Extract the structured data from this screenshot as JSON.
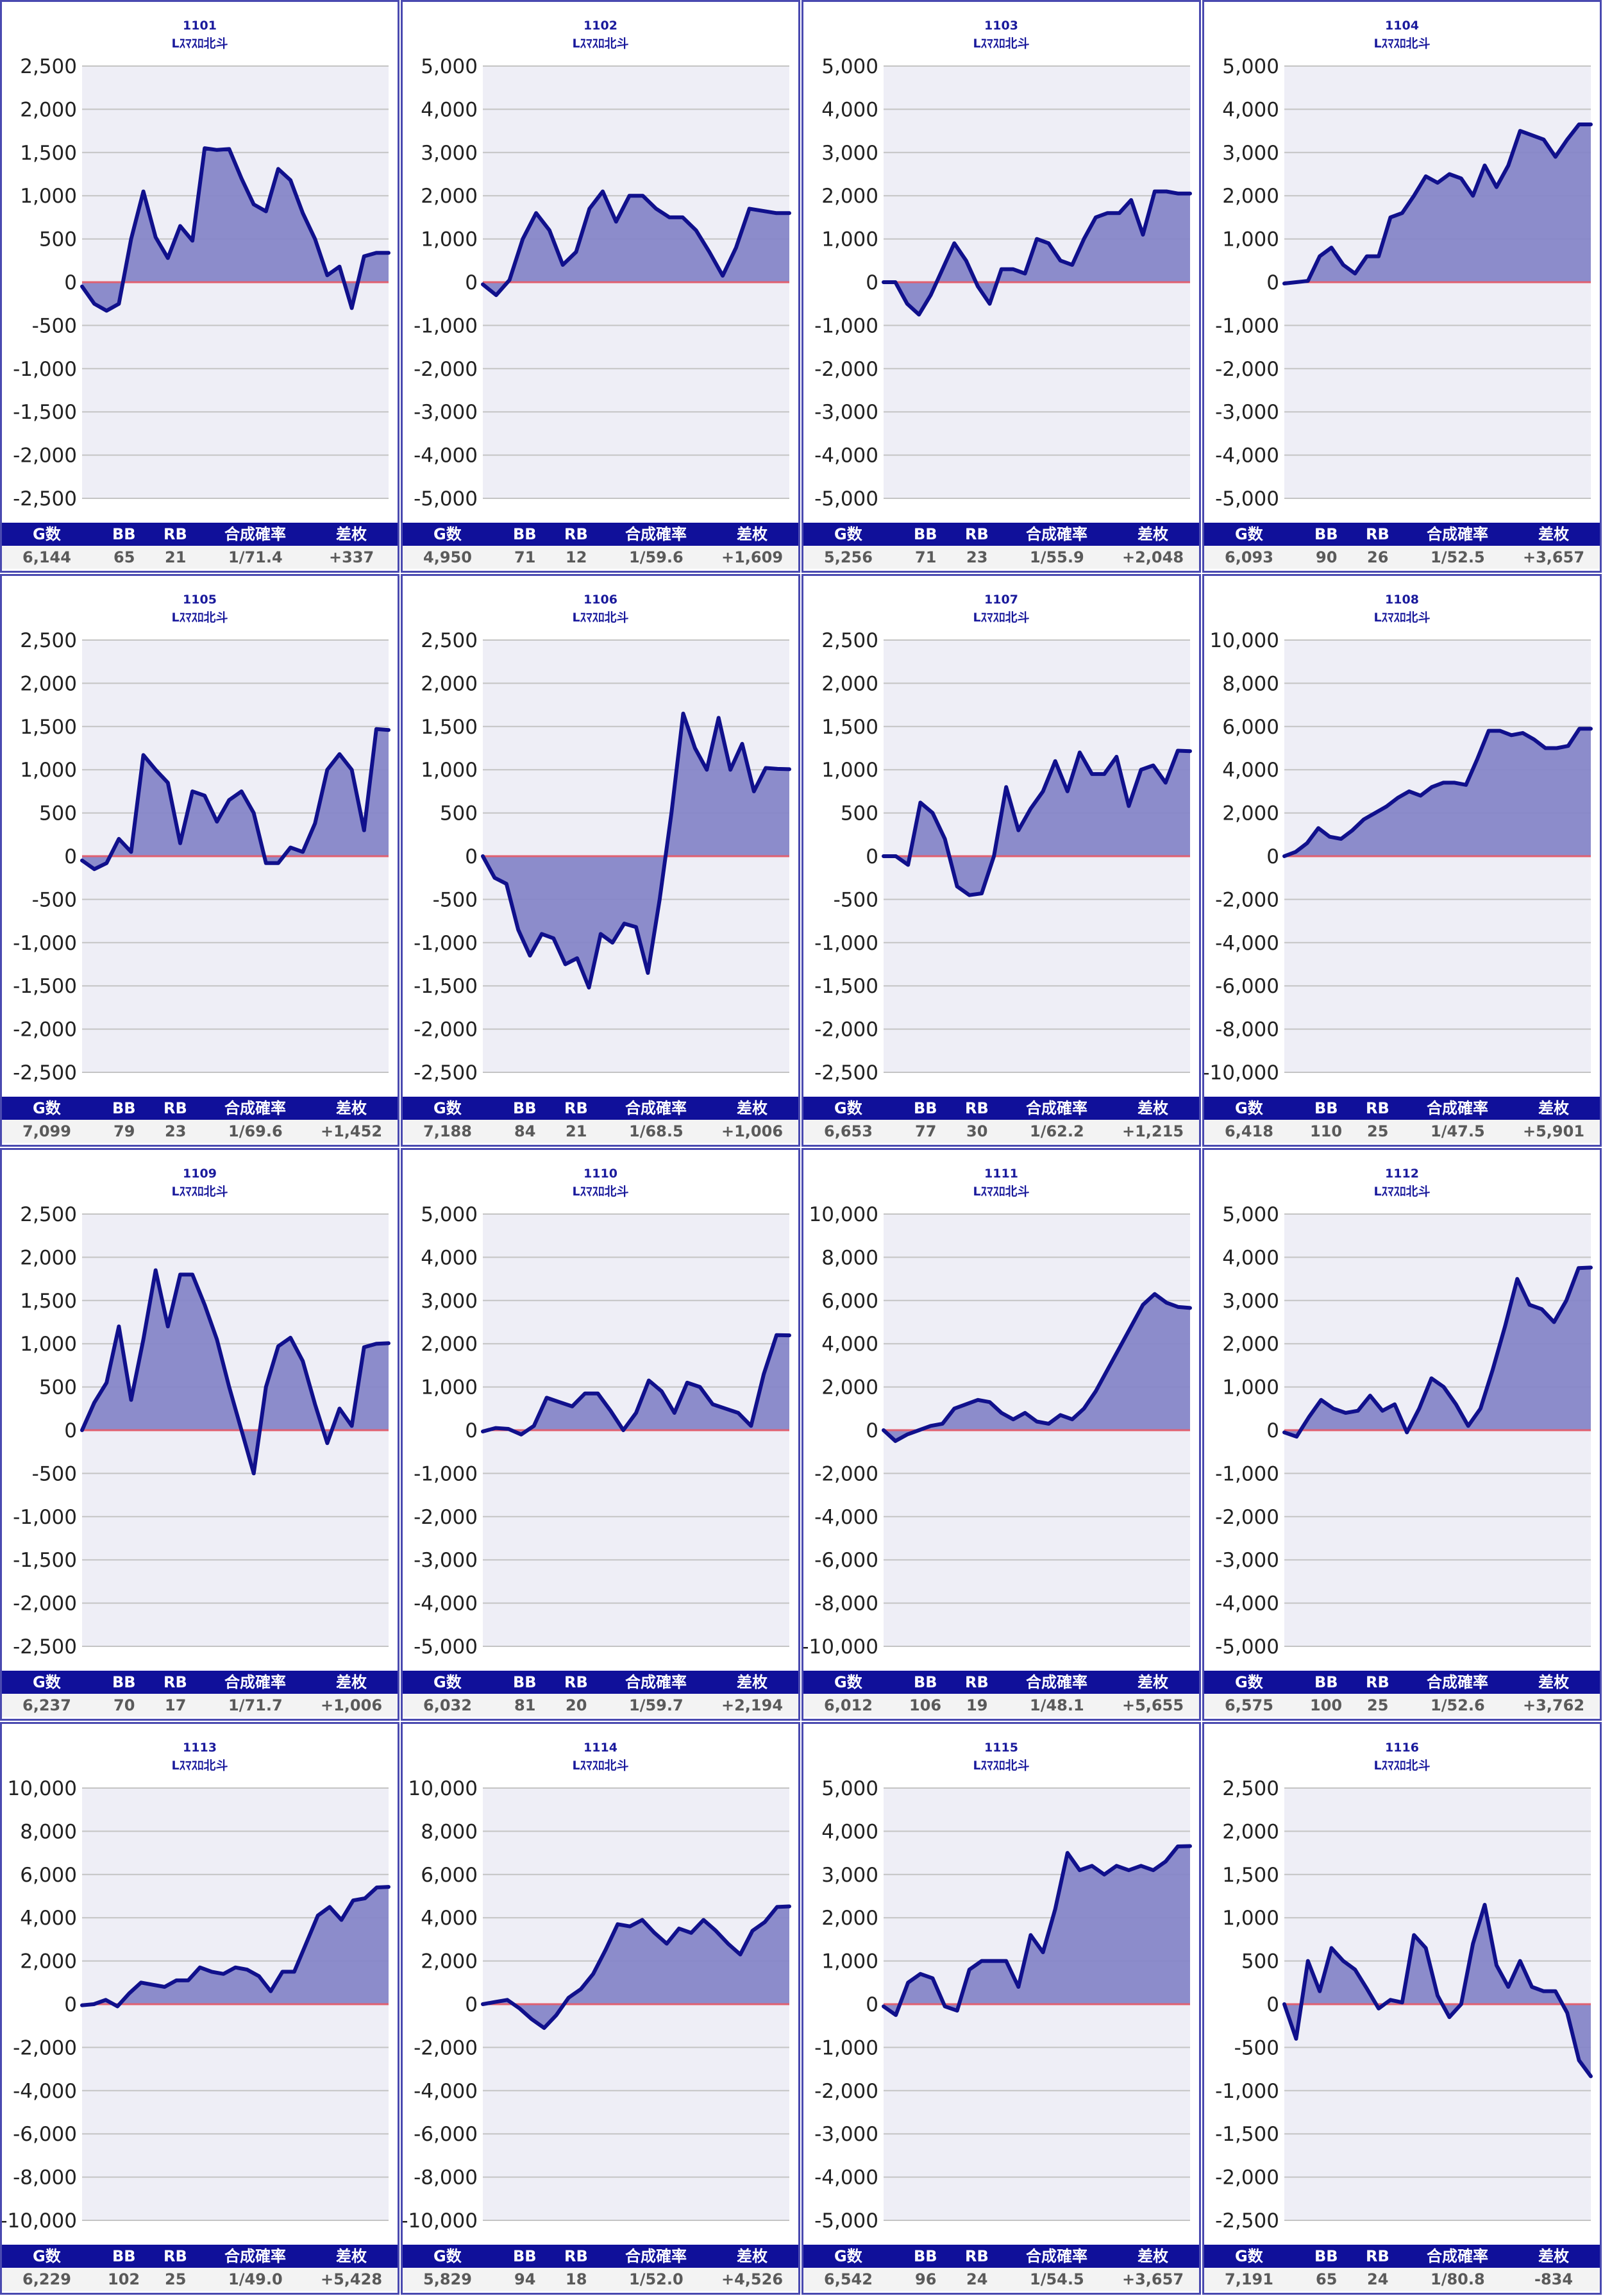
{
  "stat_headers": [
    "G数",
    "BB",
    "RB",
    "合成確率",
    "差枚"
  ],
  "machine_label": "Lｽﾏｽﾛ北斗",
  "colors": {
    "fill": "#8686c8",
    "line": "#10108c",
    "zero_line": "#e06070",
    "header_bg": "#10109a",
    "border": "#4a4ab0"
  },
  "chart_data": [
    {
      "type": "area",
      "title": "1101",
      "subtitle": "Lｽﾏｽﾛ北斗",
      "ylim": [
        -2500,
        2500
      ],
      "yticks": [
        "2,500",
        "2,000",
        "1,500",
        "1,000",
        "500",
        "0",
        "-500",
        "-1,000",
        "-1,500",
        "-2,000",
        "-2,500"
      ],
      "values": [
        -50,
        -250,
        -330,
        -250,
        500,
        1050,
        520,
        280,
        650,
        480,
        1550,
        1530,
        1540,
        1200,
        900,
        820,
        1310,
        1180,
        800,
        500,
        80,
        180,
        -300,
        300,
        340,
        340
      ],
      "stats": {
        "games": "6,144",
        "bb": "65",
        "rb": "21",
        "rate": "1/71.4",
        "diff": "+337"
      }
    },
    {
      "type": "area",
      "title": "1102",
      "subtitle": "Lｽﾏｽﾛ北斗",
      "ylim": [
        -5000,
        5000
      ],
      "yticks": [
        "5,000",
        "4,000",
        "3,000",
        "2,000",
        "1,000",
        "0",
        "-1,000",
        "-2,000",
        "-3,000",
        "-4,000",
        "-5,000"
      ],
      "values": [
        -50,
        -300,
        50,
        1000,
        1600,
        1200,
        400,
        700,
        1700,
        2100,
        1400,
        2000,
        2000,
        1700,
        1500,
        1500,
        1200,
        700,
        150,
        800,
        1700,
        1650,
        1600,
        1600
      ],
      "stats": {
        "games": "4,950",
        "bb": "71",
        "rb": "12",
        "rate": "1/59.6",
        "diff": "+1,609"
      }
    },
    {
      "type": "area",
      "title": "1103",
      "subtitle": "Lｽﾏｽﾛ北斗",
      "ylim": [
        -5000,
        5000
      ],
      "yticks": [
        "5,000",
        "4,000",
        "3,000",
        "2,000",
        "1,000",
        "0",
        "-1,000",
        "-2,000",
        "-3,000",
        "-4,000",
        "-5,000"
      ],
      "values": [
        0,
        0,
        -500,
        -750,
        -300,
        300,
        900,
        500,
        -100,
        -500,
        300,
        300,
        200,
        1000,
        900,
        500,
        400,
        1000,
        1500,
        1600,
        1600,
        1900,
        1100,
        2100,
        2100,
        2050,
        2050
      ],
      "stats": {
        "games": "5,256",
        "bb": "71",
        "rb": "23",
        "rate": "1/55.9",
        "diff": "+2,048"
      }
    },
    {
      "type": "area",
      "title": "1104",
      "subtitle": "Lｽﾏｽﾛ北斗",
      "ylim": [
        -5000,
        5000
      ],
      "yticks": [
        "5,000",
        "4,000",
        "3,000",
        "2,000",
        "1,000",
        "0",
        "-1,000",
        "-2,000",
        "-3,000",
        "-4,000",
        "-5,000"
      ],
      "values": [
        -30,
        0,
        30,
        600,
        800,
        400,
        200,
        600,
        600,
        1500,
        1600,
        2000,
        2450,
        2300,
        2500,
        2400,
        2000,
        2700,
        2200,
        2700,
        3500,
        3400,
        3300,
        2900,
        3300,
        3650,
        3650
      ],
      "stats": {
        "games": "6,093",
        "bb": "90",
        "rb": "26",
        "rate": "1/52.5",
        "diff": "+3,657"
      }
    },
    {
      "type": "area",
      "title": "1105",
      "subtitle": "Lｽﾏｽﾛ北斗",
      "ylim": [
        -2500,
        2500
      ],
      "yticks": [
        "2,500",
        "2,000",
        "1,500",
        "1,000",
        "500",
        "0",
        "-500",
        "-1,000",
        "-1,500",
        "-2,000",
        "-2,500"
      ],
      "values": [
        -50,
        -150,
        -80,
        200,
        50,
        1170,
        1000,
        850,
        150,
        750,
        700,
        400,
        650,
        750,
        500,
        -80,
        -80,
        100,
        50,
        380,
        1000,
        1180,
        1000,
        300,
        1470,
        1460
      ],
      "stats": {
        "games": "7,099",
        "bb": "79",
        "rb": "23",
        "rate": "1/69.6",
        "diff": "+1,452"
      }
    },
    {
      "type": "area",
      "title": "1106",
      "subtitle": "Lｽﾏｽﾛ北斗",
      "ylim": [
        -2500,
        2500
      ],
      "yticks": [
        "2,500",
        "2,000",
        "1,500",
        "1,000",
        "500",
        "0",
        "-500",
        "-1,000",
        "-1,500",
        "-2,000",
        "-2,500"
      ],
      "values": [
        0,
        -250,
        -320,
        -850,
        -1150,
        -900,
        -950,
        -1250,
        -1180,
        -1520,
        -900,
        -1000,
        -780,
        -820,
        -1350,
        -500,
        500,
        1650,
        1250,
        1000,
        1600,
        1000,
        1300,
        750,
        1020,
        1010,
        1006
      ],
      "stats": {
        "games": "7,188",
        "bb": "84",
        "rb": "21",
        "rate": "1/68.5",
        "diff": "+1,006"
      }
    },
    {
      "type": "area",
      "title": "1107",
      "subtitle": "Lｽﾏｽﾛ北斗",
      "ylim": [
        -2500,
        2500
      ],
      "yticks": [
        "2,500",
        "2,000",
        "1,500",
        "1,000",
        "500",
        "0",
        "-500",
        "-1,000",
        "-1,500",
        "-2,000",
        "-2,500"
      ],
      "values": [
        0,
        0,
        -100,
        620,
        500,
        200,
        -350,
        -450,
        -430,
        0,
        800,
        300,
        550,
        750,
        1100,
        750,
        1200,
        950,
        950,
        1150,
        580,
        1000,
        1050,
        850,
        1220,
        1215
      ],
      "stats": {
        "games": "6,653",
        "bb": "77",
        "rb": "30",
        "rate": "1/62.2",
        "diff": "+1,215"
      }
    },
    {
      "type": "area",
      "title": "1108",
      "subtitle": "Lｽﾏｽﾛ北斗",
      "ylim": [
        -10000,
        10000
      ],
      "yticks": [
        "10,000",
        "8,000",
        "6,000",
        "4,000",
        "2,000",
        "0",
        "-2,000",
        "-4,000",
        "-6,000",
        "-8,000",
        "-10,000"
      ],
      "values": [
        0,
        200,
        600,
        1300,
        900,
        800,
        1200,
        1700,
        2000,
        2300,
        2700,
        3000,
        2800,
        3200,
        3400,
        3400,
        3300,
        4500,
        5800,
        5800,
        5600,
        5700,
        5400,
        5000,
        5000,
        5100,
        5900,
        5900
      ],
      "stats": {
        "games": "6,418",
        "bb": "110",
        "rb": "25",
        "rate": "1/47.5",
        "diff": "+5,901"
      }
    },
    {
      "type": "area",
      "title": "1109",
      "subtitle": "Lｽﾏｽﾛ北斗",
      "ylim": [
        -2500,
        2500
      ],
      "yticks": [
        "2,500",
        "2,000",
        "1,500",
        "1,000",
        "500",
        "0",
        "-500",
        "-1,000",
        "-1,500",
        "-2,000",
        "-2,500"
      ],
      "values": [
        0,
        320,
        550,
        1200,
        350,
        1050,
        1850,
        1200,
        1800,
        1800,
        1450,
        1050,
        500,
        0,
        -500,
        500,
        970,
        1070,
        800,
        300,
        -150,
        250,
        50,
        960,
        1000,
        1006
      ],
      "stats": {
        "games": "6,237",
        "bb": "70",
        "rb": "17",
        "rate": "1/71.7",
        "diff": "+1,006"
      }
    },
    {
      "type": "area",
      "title": "1110",
      "subtitle": "Lｽﾏｽﾛ北斗",
      "ylim": [
        -5000,
        5000
      ],
      "yticks": [
        "5,000",
        "4,000",
        "3,000",
        "2,000",
        "1,000",
        "0",
        "-1,000",
        "-2,000",
        "-3,000",
        "-4,000",
        "-5,000"
      ],
      "values": [
        -30,
        50,
        30,
        -100,
        100,
        750,
        650,
        550,
        850,
        850,
        450,
        0,
        400,
        1150,
        900,
        400,
        1100,
        1000,
        600,
        500,
        400,
        100,
        1300,
        2200,
        2194
      ],
      "stats": {
        "games": "6,032",
        "bb": "81",
        "rb": "20",
        "rate": "1/59.7",
        "diff": "+2,194"
      }
    },
    {
      "type": "area",
      "title": "1111",
      "subtitle": "Lｽﾏｽﾛ北斗",
      "ylim": [
        -10000,
        10000
      ],
      "yticks": [
        "10,000",
        "8,000",
        "6,000",
        "4,000",
        "2,000",
        "0",
        "-2,000",
        "-4,000",
        "-6,000",
        "-8,000",
        "-10,000"
      ],
      "values": [
        0,
        -500,
        -200,
        0,
        200,
        300,
        1000,
        1200,
        1400,
        1300,
        800,
        500,
        800,
        400,
        300,
        700,
        500,
        1000,
        1800,
        2800,
        3800,
        4800,
        5800,
        6300,
        5900,
        5700,
        5655
      ],
      "stats": {
        "games": "6,012",
        "bb": "106",
        "rb": "19",
        "rate": "1/48.1",
        "diff": "+5,655"
      }
    },
    {
      "type": "area",
      "title": "1112",
      "subtitle": "Lｽﾏｽﾛ北斗",
      "ylim": [
        -5000,
        5000
      ],
      "yticks": [
        "5,000",
        "4,000",
        "3,000",
        "2,000",
        "1,000",
        "0",
        "-1,000",
        "-2,000",
        "-3,000",
        "-4,000",
        "-5,000"
      ],
      "values": [
        -50,
        -150,
        300,
        700,
        500,
        400,
        450,
        800,
        450,
        600,
        -50,
        500,
        1200,
        1000,
        600,
        100,
        500,
        1400,
        2400,
        3500,
        2900,
        2800,
        2500,
        3000,
        3750,
        3762
      ],
      "stats": {
        "games": "6,575",
        "bb": "100",
        "rb": "25",
        "rate": "1/52.6",
        "diff": "+3,762"
      }
    },
    {
      "type": "area",
      "title": "1113",
      "subtitle": "Lｽﾏｽﾛ北斗",
      "ylim": [
        -10000,
        10000
      ],
      "yticks": [
        "10,000",
        "8,000",
        "6,000",
        "4,000",
        "2,000",
        "0",
        "-2,000",
        "-4,000",
        "-6,000",
        "-8,000",
        "-10,000"
      ],
      "values": [
        -50,
        0,
        200,
        -100,
        500,
        1000,
        900,
        800,
        1100,
        1100,
        1700,
        1500,
        1400,
        1700,
        1600,
        1300,
        600,
        1500,
        1500,
        2800,
        4100,
        4500,
        3900,
        4800,
        4900,
        5400,
        5428
      ],
      "stats": {
        "games": "6,229",
        "bb": "102",
        "rb": "25",
        "rate": "1/49.0",
        "diff": "+5,428"
      }
    },
    {
      "type": "area",
      "title": "1114",
      "subtitle": "Lｽﾏｽﾛ北斗",
      "ylim": [
        -10000,
        10000
      ],
      "yticks": [
        "10,000",
        "8,000",
        "6,000",
        "4,000",
        "2,000",
        "0",
        "-2,000",
        "-4,000",
        "-6,000",
        "-8,000",
        "-10,000"
      ],
      "values": [
        0,
        100,
        200,
        -200,
        -700,
        -1100,
        -500,
        300,
        700,
        1400,
        2500,
        3700,
        3600,
        3900,
        3300,
        2800,
        3500,
        3300,
        3900,
        3400,
        2800,
        2300,
        3400,
        3800,
        4500,
        4526
      ],
      "stats": {
        "games": "5,829",
        "bb": "94",
        "rb": "18",
        "rate": "1/52.0",
        "diff": "+4,526"
      }
    },
    {
      "type": "area",
      "title": "1115",
      "subtitle": "Lｽﾏｽﾛ北斗",
      "ylim": [
        -5000,
        5000
      ],
      "yticks": [
        "5,000",
        "4,000",
        "3,000",
        "2,000",
        "1,000",
        "0",
        "-1,000",
        "-2,000",
        "-3,000",
        "-4,000",
        "-5,000"
      ],
      "values": [
        -50,
        -250,
        500,
        700,
        600,
        -50,
        -150,
        800,
        1000,
        1000,
        1000,
        400,
        1600,
        1200,
        2200,
        3500,
        3100,
        3200,
        3000,
        3200,
        3100,
        3200,
        3100,
        3300,
        3650,
        3657
      ],
      "stats": {
        "games": "6,542",
        "bb": "96",
        "rb": "24",
        "rate": "1/54.5",
        "diff": "+3,657"
      }
    },
    {
      "type": "area",
      "title": "1116",
      "subtitle": "Lｽﾏｽﾛ北斗",
      "ylim": [
        -2500,
        2500
      ],
      "yticks": [
        "2,500",
        "2,000",
        "1,500",
        "1,000",
        "500",
        "0",
        "-500",
        "-1,000",
        "-1,500",
        "-2,000",
        "-2,500"
      ],
      "values": [
        0,
        -400,
        500,
        150,
        650,
        500,
        400,
        180,
        -50,
        50,
        20,
        800,
        650,
        100,
        -150,
        0,
        700,
        1150,
        450,
        200,
        500,
        200,
        150,
        150,
        -100,
        -650,
        -834
      ],
      "stats": {
        "games": "7,191",
        "bb": "65",
        "rb": "24",
        "rate": "1/80.8",
        "diff": "-834"
      }
    }
  ]
}
